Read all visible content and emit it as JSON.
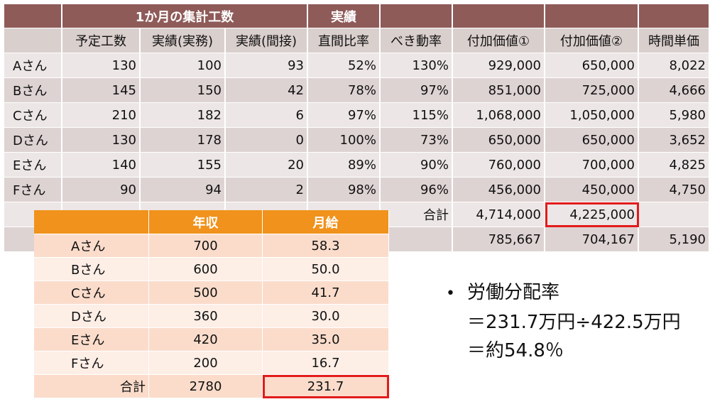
{
  "main_table": {
    "group_header_1": "1か月の集計工数",
    "group_header_2": "実績",
    "columns": [
      "予定工数",
      "実績(実務)",
      "実績(間接)",
      "直間比率",
      "べき動率",
      "付加価値①",
      "付加価値②",
      "時間単価"
    ],
    "rows": [
      {
        "name": "Aさん",
        "values": [
          "130",
          "100",
          "93",
          "52%",
          "130%",
          "929,000",
          "650,000",
          "8,022"
        ]
      },
      {
        "name": "Bさん",
        "values": [
          "145",
          "150",
          "42",
          "78%",
          "97%",
          "851,000",
          "725,000",
          "4,666"
        ]
      },
      {
        "name": "Cさん",
        "values": [
          "210",
          "182",
          "6",
          "97%",
          "115%",
          "1,068,000",
          "1,050,000",
          "5,980"
        ]
      },
      {
        "name": "Dさん",
        "values": [
          "130",
          "178",
          "0",
          "100%",
          "73%",
          "650,000",
          "650,000",
          "3,652"
        ]
      },
      {
        "name": "Eさん",
        "values": [
          "140",
          "155",
          "20",
          "89%",
          "90%",
          "760,000",
          "700,000",
          "4,825"
        ]
      },
      {
        "name": "Fさん",
        "values": [
          "90",
          "94",
          "2",
          "98%",
          "96%",
          "456,000",
          "450,000",
          "4,750"
        ]
      }
    ],
    "total_label": "合計",
    "total_value_1": "4,714,000",
    "total_value_2": "4,225,000",
    "avg_value_1": "785,667",
    "avg_value_2": "704,167",
    "avg_value_3": "5,190"
  },
  "salary_table": {
    "col_annual": "年収",
    "col_monthly": "月給",
    "rows": [
      {
        "name": "Aさん",
        "annual": "700",
        "monthly": "58.3"
      },
      {
        "name": "Bさん",
        "annual": "600",
        "monthly": "50.0"
      },
      {
        "name": "Cさん",
        "annual": "500",
        "monthly": "41.7"
      },
      {
        "name": "Dさん",
        "annual": "360",
        "monthly": "30.0"
      },
      {
        "name": "Eさん",
        "annual": "420",
        "monthly": "35.0"
      },
      {
        "name": "Fさん",
        "annual": "200",
        "monthly": "16.7"
      }
    ],
    "total_label": "合計",
    "total_annual": "2780",
    "total_monthly": "231.7"
  },
  "note": {
    "bullet": "•",
    "title": "労働分配率",
    "line1": "＝231.7万円÷422.5万円",
    "line2": "＝約54.8％"
  },
  "colors": {
    "header_brown": "#8e5b59",
    "row_light": "#ece7e6",
    "row_dark": "#ddd3d2",
    "orange_header": "#f0921c",
    "highlight_red": "#e31b1b"
  }
}
